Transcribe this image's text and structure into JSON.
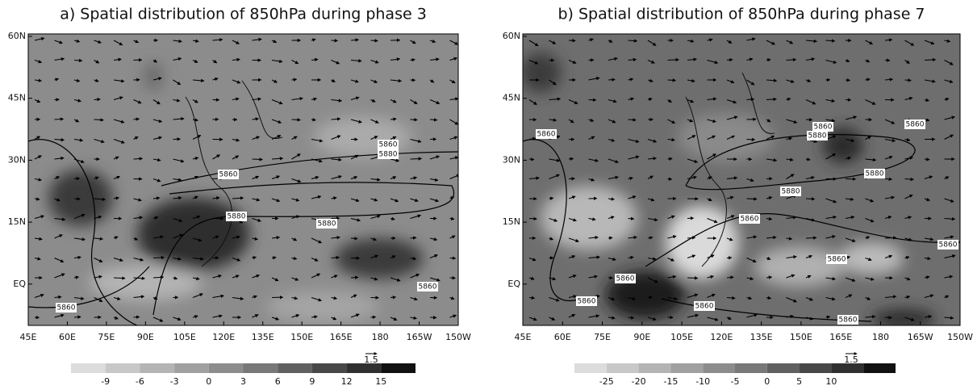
{
  "panels": [
    {
      "title": "a) Spatial distribution of 850hPa during phase 3",
      "lat_labels": [
        "60N",
        "45N",
        "30N",
        "15N",
        "EQ"
      ],
      "lon_labels": [
        "45E",
        "60E",
        "75E",
        "90E",
        "105E",
        "120E",
        "135E",
        "150E",
        "165E",
        "180",
        "165W",
        "150W"
      ],
      "contour_labels": [
        "5860",
        "5880",
        "5860",
        "5880",
        "5880",
        "5860",
        "5860"
      ],
      "colorbar_labels": [
        -9,
        -6,
        -3,
        0,
        3,
        6,
        9,
        12,
        15
      ],
      "vector_scale": 1.5
    },
    {
      "title": "b) Spatial distribution of 850hPa during phase 7",
      "lat_labels": [
        "60N",
        "45N",
        "30N",
        "15N",
        "EQ"
      ],
      "lon_labels": [
        "45E",
        "60E",
        "75E",
        "90E",
        "105E",
        "120E",
        "135E",
        "150E",
        "165E",
        "180",
        "165W",
        "150W"
      ],
      "contour_labels": [
        "5860",
        "5860",
        "5880",
        "5860",
        "5880",
        "5880",
        "5860",
        "5860",
        "5860",
        "5860",
        "5860",
        "5860",
        "5860"
      ],
      "colorbar_labels": [
        -25,
        -20,
        -15,
        -10,
        -5,
        0,
        5,
        10
      ],
      "vector_scale": 1.5
    }
  ]
}
